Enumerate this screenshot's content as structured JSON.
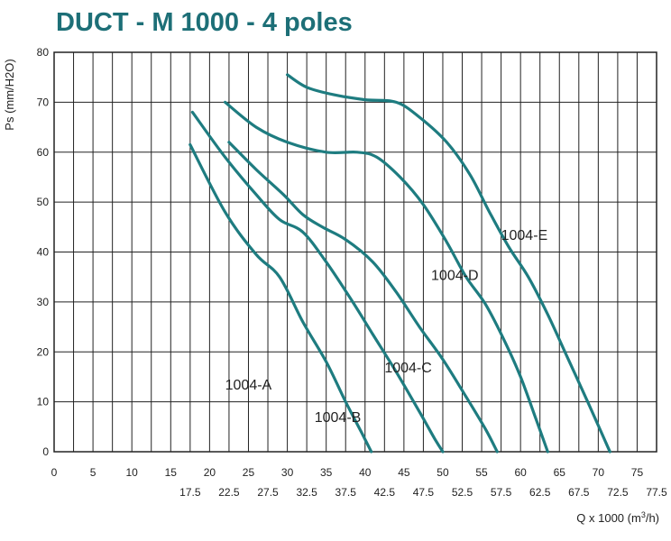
{
  "chart_data": {
    "type": "line",
    "title": "DUCT - M 1000 - 4 poles",
    "ylabel": "Ps (mm/H2O)",
    "xlabel_main": "Q x 1000 (m",
    "xlabel_sup": "3",
    "xlabel_tail": "/h)",
    "xlim": [
      0,
      77.5
    ],
    "ylim": [
      0,
      80
    ],
    "grid": true,
    "x_ticks_major": [
      "0",
      "5",
      "10",
      "15",
      "20",
      "25",
      "30",
      "35",
      "40",
      "45",
      "50",
      "55",
      "60",
      "65",
      "70",
      "75"
    ],
    "x_ticks_minor": [
      "17.5",
      "22.5",
      "27.5",
      "32.5",
      "37.5",
      "42.5",
      "47.5",
      "52.5",
      "57.5",
      "62.5",
      "67.5",
      "72.5",
      "77.5"
    ],
    "y_ticks": [
      "0",
      "10",
      "20",
      "30",
      "40",
      "50",
      "60",
      "70",
      "80"
    ],
    "series": [
      {
        "name": "1004-A",
        "label_pos": [
          22,
          13.5
        ],
        "points": [
          [
            17.5,
            61.5
          ],
          [
            22,
            48
          ],
          [
            26,
            39.5
          ],
          [
            29,
            35
          ],
          [
            32,
            26
          ],
          [
            35,
            18
          ],
          [
            37.5,
            10
          ],
          [
            39.5,
            4
          ],
          [
            40.8,
            0
          ]
        ]
      },
      {
        "name": "1004-B",
        "label_pos": [
          33.5,
          7
        ],
        "points": [
          [
            17.8,
            68
          ],
          [
            22,
            59
          ],
          [
            26,
            51.5
          ],
          [
            29,
            46.5
          ],
          [
            32,
            44
          ],
          [
            35,
            38
          ],
          [
            38,
            31
          ],
          [
            41,
            23.5
          ],
          [
            44,
            16
          ],
          [
            47,
            8
          ],
          [
            49,
            2.5
          ],
          [
            50,
            0
          ]
        ]
      },
      {
        "name": "1004-C",
        "label_pos": [
          42.5,
          17
        ],
        "points": [
          [
            22.5,
            62
          ],
          [
            26,
            56.5
          ],
          [
            29.5,
            51.5
          ],
          [
            32,
            47.5
          ],
          [
            34.5,
            45
          ],
          [
            37.5,
            42.5
          ],
          [
            41,
            38
          ],
          [
            44,
            32
          ],
          [
            47,
            25
          ],
          [
            50,
            18.5
          ],
          [
            53,
            11
          ],
          [
            55.5,
            4.5
          ],
          [
            57,
            0
          ]
        ]
      },
      {
        "name": "1004-D",
        "label_pos": [
          48.5,
          35.5
        ],
        "points": [
          [
            22,
            70
          ],
          [
            26,
            65
          ],
          [
            30,
            62
          ],
          [
            35,
            60
          ],
          [
            39,
            60
          ],
          [
            41.5,
            59
          ],
          [
            44.5,
            55
          ],
          [
            47.5,
            49.5
          ],
          [
            50.5,
            42
          ],
          [
            53,
            35
          ],
          [
            55.5,
            29.5
          ],
          [
            58,
            22
          ],
          [
            60,
            15
          ],
          [
            62,
            6.5
          ],
          [
            63.5,
            0
          ]
        ]
      },
      {
        "name": "1004-E",
        "label_pos": [
          57.5,
          43.5
        ],
        "points": [
          [
            30,
            75.5
          ],
          [
            32.5,
            73
          ],
          [
            36,
            71.5
          ],
          [
            40,
            70.5
          ],
          [
            44,
            70
          ],
          [
            47,
            67
          ],
          [
            50.5,
            62
          ],
          [
            53.5,
            55.5
          ],
          [
            56,
            48
          ],
          [
            58.5,
            41
          ],
          [
            61,
            35
          ],
          [
            63.5,
            27.5
          ],
          [
            66,
            19
          ],
          [
            68.5,
            10.5
          ],
          [
            70.5,
            3.5
          ],
          [
            71.5,
            0
          ]
        ]
      }
    ],
    "colors": {
      "title": "#1d6f77",
      "curve": "#1e7c80",
      "grid": "#222222",
      "text": "#222222"
    }
  }
}
